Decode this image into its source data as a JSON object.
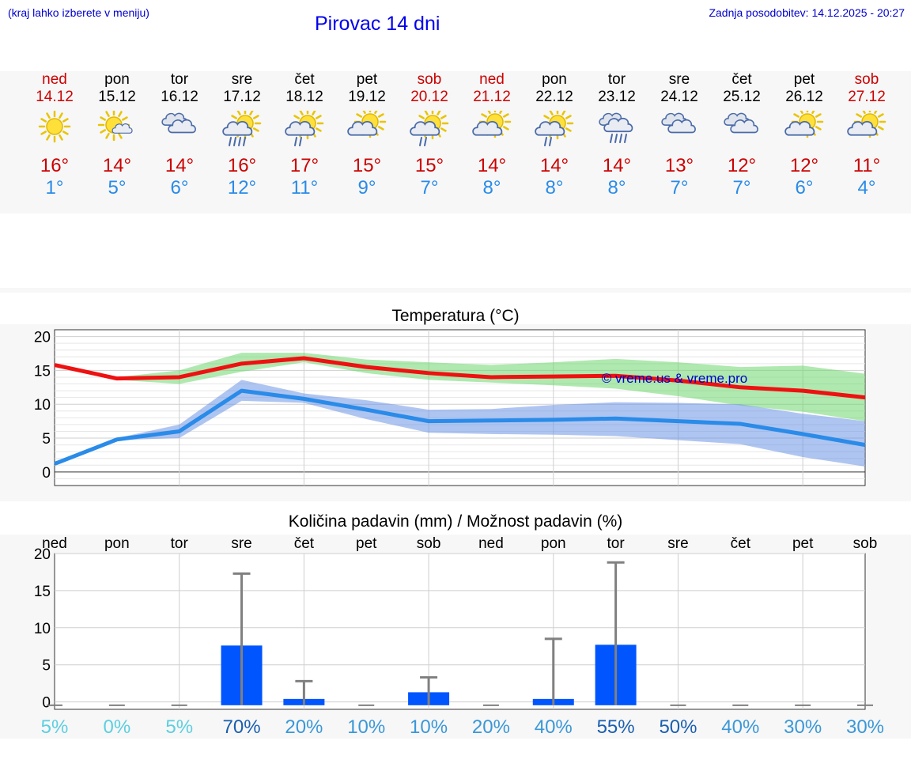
{
  "header": {
    "location_hint": "(kraj lahko izberete v meniju)",
    "title": "Pirovac 14 dni",
    "updated": "Zadnja posodobitev: 14.12.2025 - 20:27"
  },
  "colors": {
    "max": "#cc0000",
    "min": "#2a8be8",
    "brand": "#0000ee"
  },
  "days": [
    {
      "name": "ned",
      "date": "14.12",
      "weekend": true,
      "icon": "sun-icon",
      "tmax": "16°",
      "tmin": "1°"
    },
    {
      "name": "pon",
      "date": "15.12",
      "weekend": false,
      "icon": "sun-small-cloud-icon",
      "tmax": "14°",
      "tmin": "5°"
    },
    {
      "name": "tor",
      "date": "16.12",
      "weekend": false,
      "icon": "clouds-icon",
      "tmax": "14°",
      "tmin": "6°"
    },
    {
      "name": "sre",
      "date": "17.12",
      "weekend": false,
      "icon": "sun-cloud-rain-icon",
      "tmax": "16°",
      "tmin": "12°"
    },
    {
      "name": "čet",
      "date": "18.12",
      "weekend": false,
      "icon": "sun-cloud-light-rain-icon",
      "tmax": "17°",
      "tmin": "11°"
    },
    {
      "name": "pet",
      "date": "19.12",
      "weekend": false,
      "icon": "sun-cloud-icon",
      "tmax": "15°",
      "tmin": "9°"
    },
    {
      "name": "sob",
      "date": "20.12",
      "weekend": true,
      "icon": "sun-cloud-light-rain-icon",
      "tmax": "15°",
      "tmin": "7°"
    },
    {
      "name": "ned",
      "date": "21.12",
      "weekend": true,
      "icon": "sun-cloud-icon",
      "tmax": "14°",
      "tmin": "8°"
    },
    {
      "name": "pon",
      "date": "22.12",
      "weekend": false,
      "icon": "sun-cloud-light-rain-icon",
      "tmax": "14°",
      "tmin": "8°"
    },
    {
      "name": "tor",
      "date": "23.12",
      "weekend": false,
      "icon": "cloud-rain-icon",
      "tmax": "14°",
      "tmin": "8°"
    },
    {
      "name": "sre",
      "date": "24.12",
      "weekend": false,
      "icon": "clouds-icon",
      "tmax": "13°",
      "tmin": "7°"
    },
    {
      "name": "čet",
      "date": "25.12",
      "weekend": false,
      "icon": "clouds-icon",
      "tmax": "12°",
      "tmin": "7°"
    },
    {
      "name": "pet",
      "date": "26.12",
      "weekend": false,
      "icon": "sun-cloud-icon",
      "tmax": "12°",
      "tmin": "6°"
    },
    {
      "name": "sob",
      "date": "27.12",
      "weekend": true,
      "icon": "sun-cloud-icon",
      "tmax": "11°",
      "tmin": "4°"
    }
  ],
  "chart_data": [
    {
      "type": "line",
      "title": "Temperatura (°C)",
      "watermark": "© vreme.us & vreme.pro",
      "ylim": [
        -2,
        21
      ],
      "yticks": [
        0,
        5,
        10,
        15,
        20
      ],
      "x": [
        0,
        1,
        2,
        3,
        4,
        5,
        6,
        7,
        8,
        9,
        10,
        11,
        12,
        13
      ],
      "series": [
        {
          "name": "max",
          "color": "#ee1111",
          "values": [
            15.8,
            13.8,
            14.0,
            16.0,
            16.8,
            15.5,
            14.6,
            14.0,
            14.1,
            14.2,
            13.5,
            12.5,
            12.0,
            11.0
          ],
          "band_low": [
            15.8,
            13.6,
            13.0,
            14.8,
            16.2,
            14.6,
            13.6,
            13.2,
            12.8,
            12.3,
            11.2,
            9.8,
            8.9,
            7.5
          ],
          "band_high": [
            15.8,
            14.0,
            15.0,
            17.6,
            17.6,
            16.6,
            16.2,
            15.8,
            16.2,
            16.7,
            16.2,
            15.5,
            15.7,
            14.5
          ]
        },
        {
          "name": "min",
          "color": "#2a8be8",
          "values": [
            1.2,
            4.8,
            6.0,
            12.0,
            10.8,
            9.2,
            7.5,
            7.6,
            7.7,
            7.9,
            7.5,
            7.1,
            5.6,
            4.0
          ],
          "band_low": [
            1.2,
            4.7,
            5.0,
            10.5,
            10.2,
            7.8,
            5.8,
            5.6,
            5.5,
            5.3,
            4.7,
            4.1,
            2.2,
            0.8
          ],
          "band_high": [
            1.2,
            5.0,
            7.0,
            13.6,
            11.6,
            10.6,
            9.2,
            9.3,
            9.9,
            10.3,
            10.2,
            10.0,
            8.6,
            7.5
          ]
        }
      ]
    },
    {
      "type": "bar",
      "title": "Količina padavin (mm) / Možnost padavin (%)",
      "ylim": [
        -1,
        20
      ],
      "yticks": [
        0,
        5,
        10,
        15,
        20
      ],
      "categories": [
        "ned",
        "pon",
        "tor",
        "sre",
        "čet",
        "pet",
        "sob",
        "ned",
        "pon",
        "tor",
        "sre",
        "čet",
        "pet",
        "sob"
      ],
      "values": [
        0,
        0,
        0,
        7.6,
        0.4,
        0,
        1.3,
        0,
        0.4,
        7.7,
        0,
        0,
        0,
        0
      ],
      "error_high": [
        0,
        0,
        0,
        17.3,
        2.8,
        0,
        3.3,
        0,
        8.5,
        18.8,
        0,
        0,
        0,
        0
      ],
      "probability": [
        "5%",
        "0%",
        "5%",
        "70%",
        "20%",
        "10%",
        "10%",
        "20%",
        "40%",
        "55%",
        "50%",
        "40%",
        "30%",
        "30%"
      ]
    }
  ]
}
